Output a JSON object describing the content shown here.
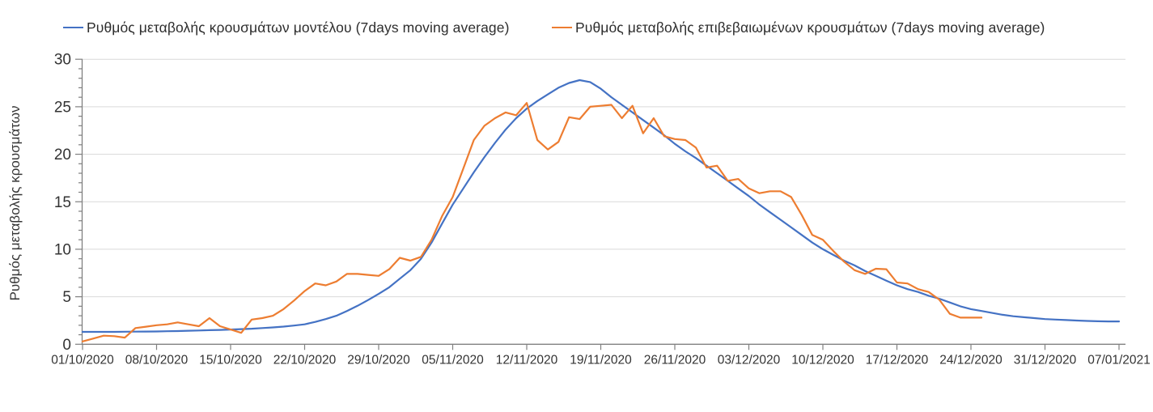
{
  "legend": {
    "items": [
      {
        "id": "model",
        "label": "Ρυθμός μεταβολής κρουσμάτων μοντέλου (7days moving average)",
        "color": "#4472C4"
      },
      {
        "id": "confirmed",
        "label": "Ρυθμός μεταβολής επιβεβαιωμένων κρουσμάτων (7days moving average)",
        "color": "#ED7D31"
      }
    ]
  },
  "chart_data": {
    "type": "line",
    "title": "",
    "xlabel": "",
    "ylabel": "Ρυθμός μεταβολής κρουσμάτων",
    "ylim": [
      0,
      30
    ],
    "y_major_ticks": [
      0,
      5,
      10,
      15,
      20,
      25,
      30
    ],
    "y_minor_step": 1,
    "grid": "horizontal-major",
    "legend_position": "top",
    "n_days": 99,
    "x_tick_every_days": 7,
    "x_tick_labels": [
      "01/10/2020",
      "08/10/2020",
      "15/10/2020",
      "22/10/2020",
      "29/10/2020",
      "05/11/2020",
      "12/11/2020",
      "19/11/2020",
      "26/11/2020",
      "03/12/2020",
      "10/12/2020",
      "17/12/2020",
      "24/12/2020",
      "31/12/2020",
      "07/01/2021"
    ],
    "series": [
      {
        "id": "model",
        "name": "Ρυθμός μεταβολής κρουσμάτων μοντέλου (7days moving average)",
        "color": "#4472C4",
        "start_index": 0,
        "values": [
          1.3,
          1.3,
          1.3,
          1.3,
          1.32,
          1.33,
          1.34,
          1.35,
          1.37,
          1.39,
          1.42,
          1.45,
          1.48,
          1.51,
          1.55,
          1.59,
          1.64,
          1.7,
          1.77,
          1.86,
          1.97,
          2.1,
          2.35,
          2.65,
          3.0,
          3.5,
          4.05,
          4.65,
          5.3,
          6.0,
          6.9,
          7.8,
          9.0,
          10.7,
          12.7,
          14.7,
          16.4,
          18.1,
          19.7,
          21.2,
          22.6,
          23.8,
          24.8,
          25.6,
          26.3,
          27.0,
          27.5,
          27.8,
          27.6,
          26.9,
          26.0,
          25.2,
          24.4,
          23.6,
          22.8,
          22.0,
          21.1,
          20.3,
          19.6,
          18.8,
          18.0,
          17.2,
          16.4,
          15.6,
          14.7,
          13.9,
          13.1,
          12.3,
          11.5,
          10.7,
          10.0,
          9.4,
          8.8,
          8.3,
          7.7,
          7.2,
          6.7,
          6.2,
          5.8,
          5.5,
          5.1,
          4.8,
          4.4,
          4.0,
          3.7,
          3.5,
          3.3,
          3.1,
          2.95,
          2.85,
          2.75,
          2.65,
          2.6,
          2.55,
          2.5,
          2.45,
          2.42,
          2.4,
          2.4
        ]
      },
      {
        "id": "confirmed",
        "name": "Ρυθμός μεταβολής επιβεβαιωμένων κρουσμάτων (7days moving average)",
        "color": "#ED7D31",
        "start_index": 0,
        "values": [
          0.3,
          0.6,
          0.9,
          0.85,
          0.7,
          1.7,
          1.85,
          2.0,
          2.1,
          2.3,
          2.1,
          1.9,
          2.75,
          1.9,
          1.55,
          1.2,
          2.6,
          2.75,
          3.0,
          3.7,
          4.6,
          5.6,
          6.4,
          6.2,
          6.6,
          7.4,
          7.4,
          7.3,
          7.2,
          7.9,
          9.1,
          8.8,
          9.2,
          11.0,
          13.5,
          15.5,
          18.5,
          21.5,
          23.0,
          23.8,
          24.4,
          24.1,
          25.4,
          21.5,
          20.5,
          21.3,
          23.9,
          23.7,
          25.0,
          25.1,
          25.2,
          23.8,
          25.1,
          22.2,
          23.8,
          21.9,
          21.6,
          21.5,
          20.7,
          18.6,
          18.8,
          17.2,
          17.4,
          16.4,
          15.9,
          16.1,
          16.1,
          15.5,
          13.6,
          11.5,
          11.0,
          9.8,
          8.7,
          7.8,
          7.4,
          7.95,
          7.9,
          6.5,
          6.4,
          5.8,
          5.5,
          4.7,
          3.2,
          2.8,
          2.8,
          2.8
        ]
      }
    ]
  },
  "colors": {
    "grid": "#D9D9D9",
    "axis": "#808080",
    "tick_label": "#333333",
    "series_model": "#4472C4",
    "series_confirmed": "#ED7D31"
  }
}
